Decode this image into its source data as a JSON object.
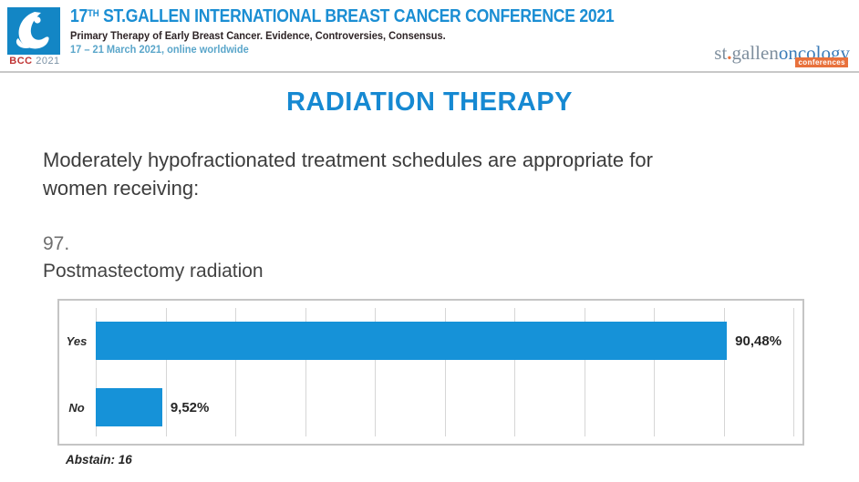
{
  "header": {
    "logo": {
      "bcc": "BCC",
      "year": "2021"
    },
    "title_num": "17",
    "title_sup": "TH",
    "title_rest": " ST.GALLEN INTERNATIONAL BREAST CANCER CONFERENCE 2021",
    "subtitle": "Primary Therapy of Early Breast Cancer. Evidence, Controversies, Consensus.",
    "date_line": "17 – 21 March 2021, online worldwide",
    "brand": {
      "part1": "st",
      "dot": ".",
      "part2": "gallen",
      "part3": "oncology",
      "tag": "conferences"
    }
  },
  "main": {
    "section_title": "RADIATION THERAPY",
    "question_line1": "Moderately hypofractionated treatment schedules are appropriate for",
    "question_line2": "women receiving:",
    "question_number": "97.",
    "question_label": "Postmastectomy radiation",
    "abstain_note": "Abstain: 16"
  },
  "chart_data": {
    "type": "bar",
    "orientation": "horizontal",
    "categories": [
      "Yes",
      "No"
    ],
    "values": [
      90.48,
      9.52
    ],
    "value_labels": [
      "90,48%",
      "9,52%"
    ],
    "xlim": [
      0,
      100
    ],
    "grid_step": 10,
    "grid": true,
    "bar_color": "#1692d8",
    "abstain_count": 16
  },
  "colors": {
    "accent_blue": "#1689d2",
    "bar_blue": "#1692d8",
    "header_blue": "#1b8ed3",
    "date_blue": "#5aa6ca",
    "bcc_red": "#c03434",
    "brand_orange": "#e8713c",
    "gridline": "#d6d6d6"
  }
}
